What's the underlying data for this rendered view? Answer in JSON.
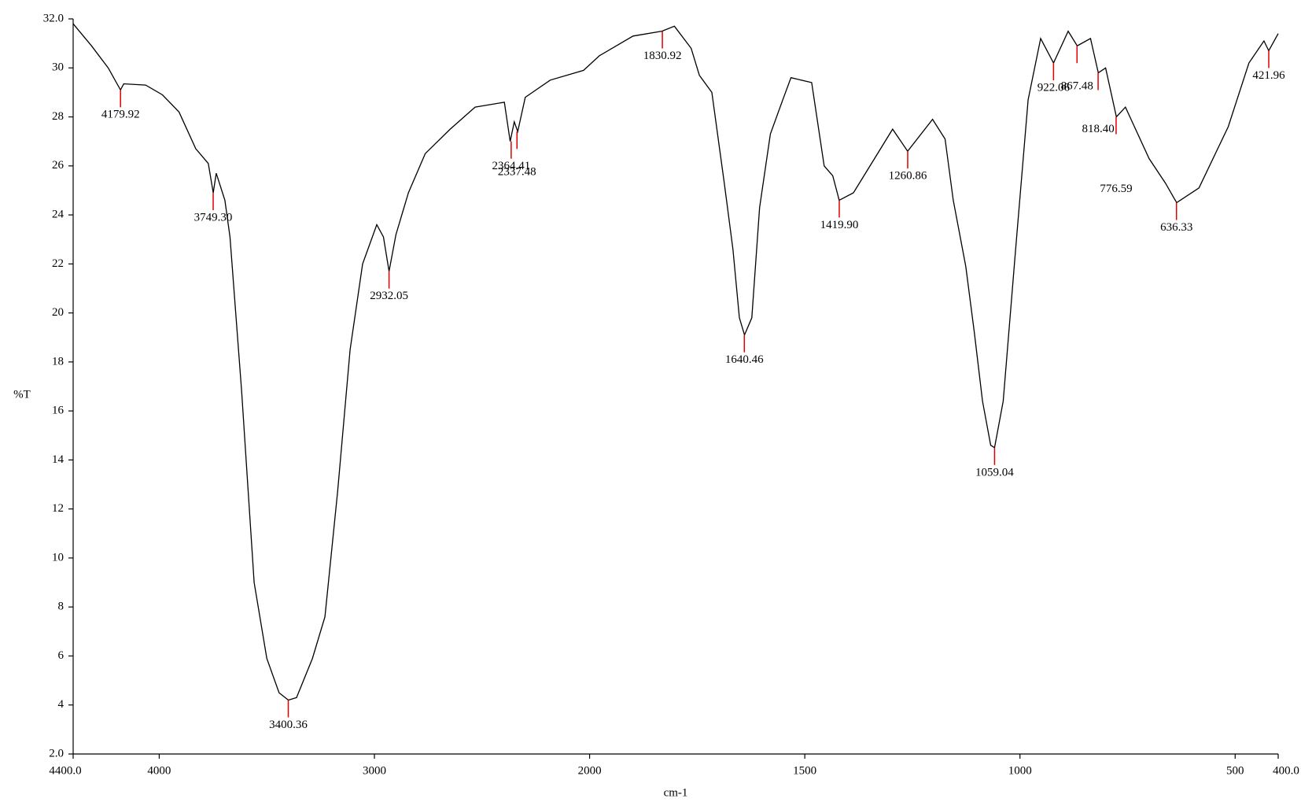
{
  "chart_data": {
    "type": "line",
    "x_label": "cm-1",
    "y_label": "%T",
    "color": "#000000",
    "annotation_color": "#e00000",
    "xlim": [
      4400,
      400
    ],
    "xbreak": 2000,
    "xbreak_ratio": 2,
    "ylim": [
      2,
      32
    ],
    "xticks": [
      {
        "value": 4400,
        "label": "4400.0"
      },
      4000,
      3000,
      2000,
      1500,
      1000,
      500,
      {
        "value": 400,
        "label": "400.0"
      }
    ],
    "yticks": [
      {
        "value": 2,
        "label": "2.0"
      },
      4,
      6,
      8,
      10,
      12,
      14,
      16,
      18,
      20,
      22,
      24,
      26,
      28,
      30,
      {
        "value": 32,
        "label": "32.0"
      }
    ],
    "x": [
      4400,
      4315,
      4237,
      4180,
      4165,
      4063,
      3985,
      3908,
      3830,
      3772,
      3749,
      3735,
      3695,
      3671,
      3617,
      3559,
      3500,
      3443,
      3400,
      3362,
      3288,
      3230,
      3171,
      3113,
      3055,
      2989,
      2958,
      2932,
      2900,
      2842,
      2764,
      2648,
      2532,
      2396,
      2369,
      2350,
      2334,
      2299,
      2183,
      2028,
      1977,
      1899,
      1832,
      1803,
      1764,
      1745,
      1716,
      1687,
      1667,
      1652,
      1640,
      1623,
      1605,
      1580,
      1551,
      1532,
      1484,
      1455,
      1435,
      1420,
      1387,
      1338,
      1296,
      1261,
      1203,
      1174,
      1155,
      1126,
      1106,
      1087,
      1068,
      1059,
      1039,
      1010,
      981,
      952,
      922,
      888,
      867,
      836,
      818,
      801,
      776,
      755,
      700,
      662,
      636,
      584,
      516,
      468,
      433,
      422,
      400
    ],
    "values": [
      31.8,
      30.9,
      30.0,
      29.1,
      29.35,
      29.3,
      28.9,
      28.2,
      26.7,
      26.1,
      24.9,
      25.7,
      24.6,
      23.1,
      16.8,
      9.0,
      5.9,
      4.5,
      4.2,
      4.3,
      5.9,
      7.6,
      12.7,
      18.5,
      22.0,
      23.6,
      23.1,
      21.7,
      23.2,
      24.9,
      26.5,
      27.5,
      28.4,
      28.6,
      27.0,
      27.8,
      27.4,
      28.8,
      29.5,
      29.9,
      30.5,
      31.3,
      31.5,
      31.7,
      30.8,
      29.7,
      29.0,
      25.3,
      22.6,
      19.8,
      19.1,
      19.8,
      24.3,
      27.3,
      28.7,
      29.6,
      29.4,
      26.0,
      25.6,
      24.6,
      24.9,
      26.3,
      27.5,
      26.6,
      27.9,
      27.1,
      24.6,
      21.9,
      19.2,
      16.4,
      14.6,
      14.5,
      16.4,
      22.6,
      28.7,
      31.2,
      30.2,
      31.5,
      30.9,
      31.2,
      29.8,
      30.0,
      28.0,
      28.4,
      26.3,
      25.3,
      24.5,
      25.1,
      27.6,
      30.2,
      31.1,
      30.7,
      31.4
    ],
    "annotations": [
      {
        "x": 4179.92,
        "y": 29.1,
        "label": "4179.92"
      },
      {
        "x": {
          "value": 3749.3,
          "label": "3749.30"
        },
        "y": 24.9,
        "label": "3749.30"
      },
      {
        "x": 3400.36,
        "y": 4.2,
        "label": "3400.36"
      },
      {
        "x": 2932.05,
        "y": 21.7,
        "label": "2932.05"
      },
      {
        "x": 2364.41,
        "y": 27.0,
        "label": "2364.41"
      },
      {
        "x": 2337.48,
        "y": 27.4,
        "label": "2337.48"
      },
      {
        "x": 1830.92,
        "y": 31.5,
        "label": "1830.92"
      },
      {
        "x": 1640.46,
        "y": 19.1,
        "label": "1640.46"
      },
      {
        "x": {
          "value": 1419.9,
          "label": "1419.90"
        },
        "y": 24.6,
        "label": "1419.90"
      },
      {
        "x": 1260.86,
        "y": 26.6,
        "label": "1260.86"
      },
      {
        "x": 1059.04,
        "y": 14.5,
        "label": "1059.04"
      },
      {
        "x": 922.06,
        "y": 30.2,
        "label": "922.06"
      },
      {
        "x": 867.48,
        "y": 30.9,
        "label": "867.48"
      },
      {
        "x": {
          "value": 818.4,
          "label": "818.40"
        },
        "y": 29.8,
        "label": "818.40"
      },
      {
        "x": 776.59,
        "y": 28.0,
        "label": "776.59"
      },
      {
        "x": 636.33,
        "y": 24.5,
        "label": "636.33"
      },
      {
        "x": 421.96,
        "y": 30.7,
        "label": "421.96"
      }
    ]
  }
}
